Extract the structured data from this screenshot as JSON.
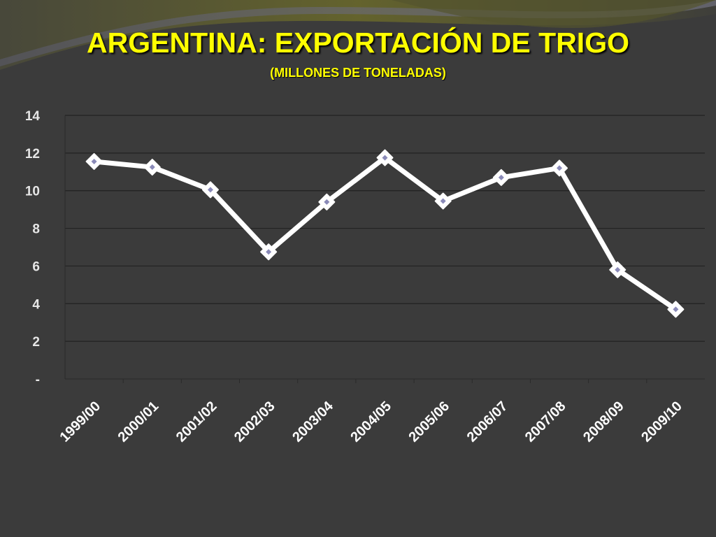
{
  "title": "ARGENTINA: EXPORTACIÓN DE TRIGO",
  "subtitle": "(MILLONES DE TONELADAS)",
  "colors": {
    "background": "#3b3b3b",
    "title": "#ffff00",
    "line": "#ffffff",
    "marker_center": "#8a8ab8",
    "gridline": "#222222"
  },
  "chart_data": {
    "type": "line",
    "title": "",
    "xlabel": "",
    "ylabel": "",
    "categories": [
      "1999/00",
      "2000/01",
      "2001/02",
      "2002/03",
      "2003/04",
      "2004/05",
      "2005/06",
      "2006/07",
      "2007/08",
      "2008/09",
      "2009/10"
    ],
    "series": [
      {
        "values": [
          11.55,
          11.25,
          10.05,
          6.75,
          9.4,
          11.75,
          9.45,
          10.7,
          11.2,
          5.8,
          3.7
        ]
      }
    ],
    "ylim": [
      0,
      14
    ],
    "y_ticks": [
      {
        "value": 0,
        "label": "-"
      },
      {
        "value": 2,
        "label": "2"
      },
      {
        "value": 4,
        "label": "4"
      },
      {
        "value": 6,
        "label": "6"
      },
      {
        "value": 8,
        "label": "8"
      },
      {
        "value": 10,
        "label": "10"
      },
      {
        "value": 12,
        "label": "12"
      },
      {
        "value": 14,
        "label": "14"
      }
    ],
    "grid": true,
    "legend": "none",
    "marker": "diamond"
  }
}
